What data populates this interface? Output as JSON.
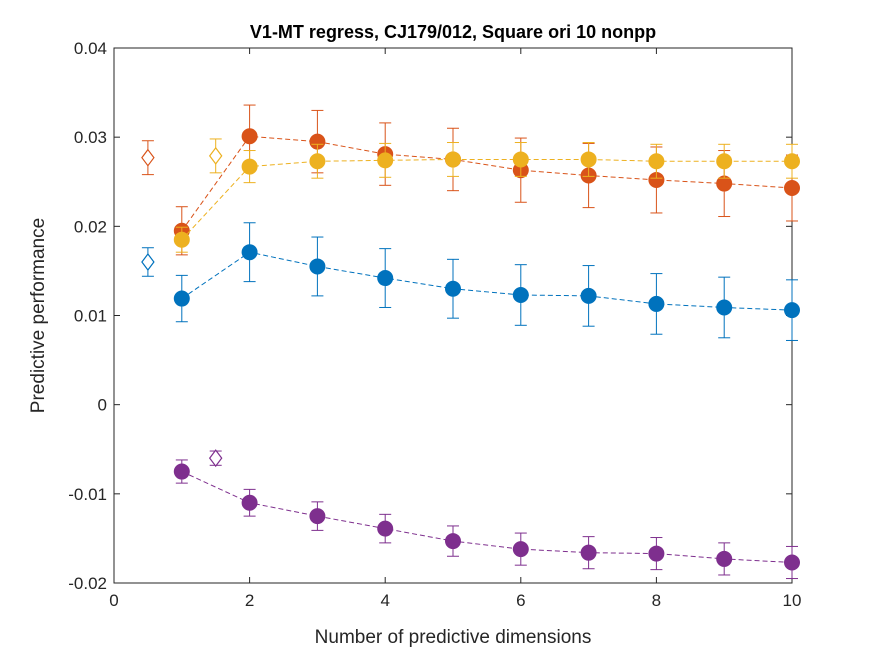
{
  "chart_data": {
    "type": "scatter",
    "title": "V1-MT regress, CJ179/012, Square ori 10 nonpp",
    "xlabel": "Number of predictive dimensions",
    "ylabel": "Predictive performance",
    "xlim": [
      0,
      10
    ],
    "ylim": [
      -0.02,
      0.04
    ],
    "xticks": [
      0,
      2,
      4,
      6,
      8,
      10
    ],
    "yticks": [
      -0.02,
      -0.01,
      0,
      0.01,
      0.02,
      0.03,
      0.04
    ],
    "xtick_labels": [
      "0",
      "2",
      "4",
      "6",
      "8",
      "10"
    ],
    "ytick_labels": [
      "-0.02",
      "-0.01",
      "0",
      "0.01",
      "0.02",
      "0.03",
      "0.04"
    ],
    "grid": false,
    "legend": "none",
    "series": [
      {
        "color": "#0072BD",
        "x": [
          1,
          2,
          3,
          4,
          5,
          6,
          7,
          8,
          9,
          10
        ],
        "y": [
          0.0119,
          0.0171,
          0.0155,
          0.0142,
          0.013,
          0.0123,
          0.0122,
          0.0113,
          0.0109,
          0.0106
        ],
        "err": [
          0.0026,
          0.0033,
          0.0033,
          0.0033,
          0.0033,
          0.0034,
          0.0034,
          0.0034,
          0.0034,
          0.0034
        ],
        "ref": {
          "x": 0.5,
          "y": 0.016,
          "err": 0.0016
        }
      },
      {
        "color": "#D95319",
        "x": [
          1,
          2,
          3,
          4,
          5,
          6,
          7,
          8,
          9,
          10
        ],
        "y": [
          0.0195,
          0.0301,
          0.0295,
          0.0281,
          0.0275,
          0.0263,
          0.0257,
          0.0252,
          0.0248,
          0.0243
        ],
        "err": [
          0.0027,
          0.0035,
          0.0035,
          0.0035,
          0.0035,
          0.0036,
          0.0036,
          0.0037,
          0.0037,
          0.0037
        ],
        "ref": {
          "x": 0.5,
          "y": 0.0277,
          "err": 0.0019
        }
      },
      {
        "color": "#EDB120",
        "x": [
          1,
          2,
          3,
          4,
          5,
          6,
          7,
          8,
          9,
          10
        ],
        "y": [
          0.0185,
          0.0267,
          0.0273,
          0.0274,
          0.0275,
          0.0275,
          0.0275,
          0.0273,
          0.0273,
          0.0273
        ],
        "err": [
          0.0014,
          0.0018,
          0.0019,
          0.0019,
          0.0019,
          0.0019,
          0.0019,
          0.0019,
          0.0019,
          0.0019
        ],
        "ref": {
          "x": 1.5,
          "y": 0.0279,
          "err": 0.0019
        }
      },
      {
        "color": "#7E2F8E",
        "x": [
          1,
          2,
          3,
          4,
          5,
          6,
          7,
          8,
          9,
          10
        ],
        "y": [
          -0.0075,
          -0.011,
          -0.0125,
          -0.0139,
          -0.0153,
          -0.0162,
          -0.0166,
          -0.0167,
          -0.0173,
          -0.0177
        ],
        "err": [
          0.0013,
          0.0015,
          0.0016,
          0.0016,
          0.0017,
          0.0018,
          0.0018,
          0.0018,
          0.0018,
          0.0018
        ],
        "ref": {
          "x": 1.5,
          "y": -0.006,
          "err": 0.0008
        }
      }
    ]
  }
}
